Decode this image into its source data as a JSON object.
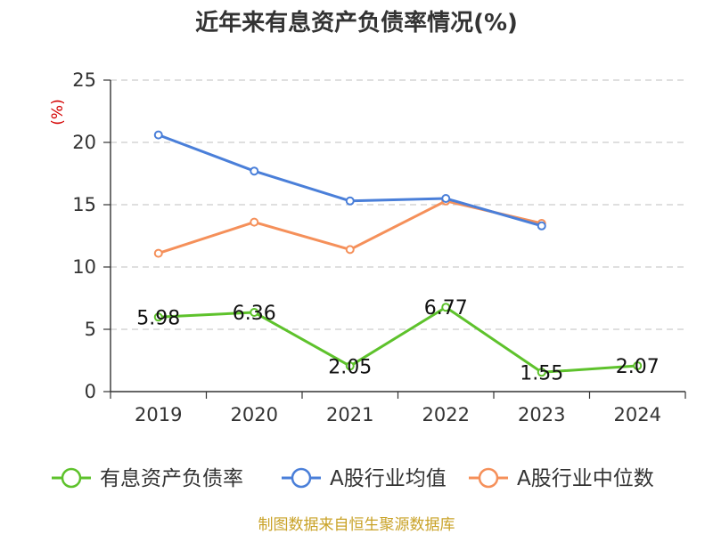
{
  "chart_data": {
    "type": "line",
    "title": "近年来有息资产负债率情况(%)",
    "ylabel": "(%)",
    "xlabel": "",
    "categories": [
      "2019",
      "2020",
      "2021",
      "2022",
      "2023",
      "2024"
    ],
    "ylim": [
      0,
      25
    ],
    "yticks": [
      0,
      5,
      10,
      15,
      20,
      25
    ],
    "grid": true,
    "legend_position": "bottom",
    "series": [
      {
        "name": "有息资产负债率",
        "color": "#5ec22c",
        "values": [
          5.98,
          6.36,
          2.05,
          6.77,
          1.55,
          2.07
        ],
        "data_labels": [
          "5.98",
          "6.36",
          "2.05",
          "6.77",
          "1.55",
          "2.07"
        ]
      },
      {
        "name": "A股行业均值",
        "color": "#4a7fd9",
        "values": [
          20.6,
          17.7,
          15.3,
          15.5,
          13.3,
          null
        ]
      },
      {
        "name": "A股行业中位数",
        "color": "#f5905a",
        "values": [
          11.1,
          13.6,
          11.4,
          15.3,
          13.5,
          null
        ]
      }
    ],
    "source": "制图数据来自恒生聚源数据库"
  }
}
